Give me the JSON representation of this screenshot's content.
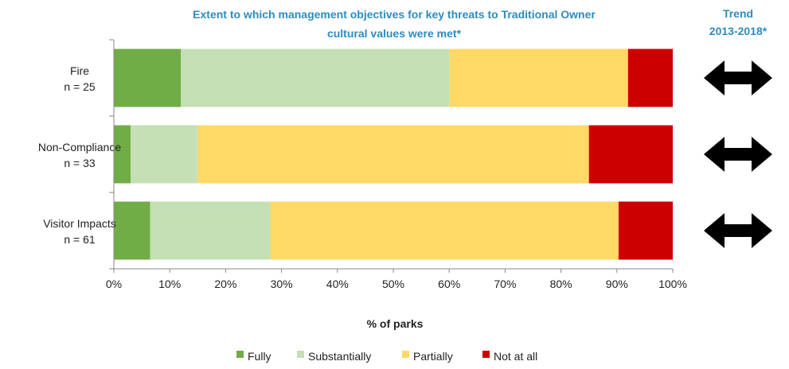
{
  "chart_data": {
    "type": "bar",
    "orientation": "horizontal",
    "stacked": true,
    "title_lines": [
      "Extent to which management objectives for key threats to Traditional Owner",
      "cultural values were met*"
    ],
    "trend_header_lines": [
      "Trend",
      "2013-2018*"
    ],
    "categories": [
      {
        "name": "Fire",
        "n_label": "n = 25"
      },
      {
        "name": "Non-Compliance",
        "n_label": "n = 33"
      },
      {
        "name": "Visitor Impacts",
        "n_label": "n = 61"
      }
    ],
    "series": [
      {
        "name": "Fully",
        "color": "#70ad47",
        "values": [
          12,
          3,
          6.5
        ]
      },
      {
        "name": "Substantially",
        "color": "#c5e0b4",
        "values": [
          48,
          12,
          21.5
        ]
      },
      {
        "name": "Partially",
        "color": "#ffd966",
        "values": [
          32,
          70,
          62.3
        ]
      },
      {
        "name": "Not at all",
        "color": "#cc0000",
        "values": [
          8,
          15,
          9.7
        ]
      }
    ],
    "xlabel": "% of parks",
    "xlim": [
      0,
      100
    ],
    "x_ticks": [
      "0%",
      "10%",
      "20%",
      "30%",
      "40%",
      "50%",
      "60%",
      "70%",
      "80%",
      "90%",
      "100%"
    ],
    "trend": [
      {
        "category": "Fire",
        "icon": "double-headed-arrow-icon",
        "meaning": "stable"
      },
      {
        "category": "Non-Compliance",
        "icon": "double-headed-arrow-icon",
        "meaning": "stable"
      },
      {
        "category": "Visitor Impacts",
        "icon": "double-headed-arrow-icon",
        "meaning": "stable"
      }
    ],
    "legend_position": "bottom",
    "grid": false
  }
}
